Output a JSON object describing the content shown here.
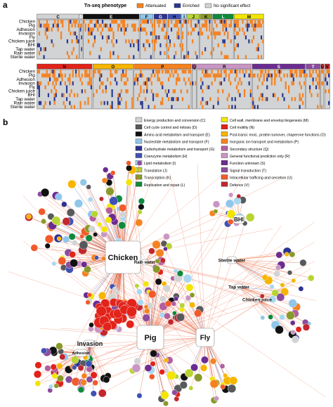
{
  "panel_a": {
    "label": "a",
    "legend": {
      "title": "Tn-seq phenotype",
      "items": [
        {
          "label": "Attenuated",
          "color": "#f58220"
        },
        {
          "label": "Enriched",
          "color": "#2b3990"
        },
        {
          "label": "No significant effect",
          "color": "#d1d3d4"
        }
      ]
    },
    "rows": [
      "Chicken",
      "Pig",
      "Adhesion",
      "Invasion",
      "Fly",
      "Chicken juice",
      "BHI",
      "Tap water",
      "Rain water",
      "Sterile water"
    ],
    "top_categories": [
      {
        "label": "C",
        "color": "#d1d3d4"
      },
      {
        "label": "D",
        "color": "#bcbec0"
      },
      {
        "label": "E",
        "color": "#111111"
      },
      {
        "label": "F",
        "color": "#8fc6ea"
      },
      {
        "label": "G",
        "color": "#2e3192"
      },
      {
        "label": "H",
        "color": "#3f51b5"
      },
      {
        "label": "I",
        "color": "#a6d8f0"
      },
      {
        "label": "J",
        "color": "#b8d433"
      },
      {
        "label": "K",
        "color": "#8a9a2a"
      },
      {
        "label": "L",
        "color": "#0d8a3c"
      },
      {
        "label": "M",
        "color": "#f2e500"
      }
    ],
    "bottom_categories": [
      {
        "label": "N",
        "color": "#e2231a"
      },
      {
        "label": "O",
        "color": "#f7b500"
      },
      {
        "label": "P",
        "color": "#f58220"
      },
      {
        "label": "Q",
        "color": "#b25fa0"
      },
      {
        "label": "R",
        "color": "#c996c4"
      },
      {
        "label": "S",
        "color": "#6b2c91"
      },
      {
        "label": "T",
        "color": "#8b4c9e"
      },
      {
        "label": "U",
        "color": "#c1272d"
      },
      {
        "label": "V",
        "color": "#d2232a"
      }
    ]
  },
  "panel_b": {
    "label": "b",
    "cog_legend": [
      {
        "label": "Energy production and conversion (C)",
        "color": "#d1d3d4"
      },
      {
        "label": "Cell cycle control and mitosis (D)",
        "color": "#58595b"
      },
      {
        "label": "Amino acid metabolism and transport (E)",
        "color": "#111111"
      },
      {
        "label": "Nucleotide metabolism and transport (F)",
        "color": "#8fc6ea"
      },
      {
        "label": "Carbohydrate metabolism and transport (G)",
        "color": "#2e3192"
      },
      {
        "label": "Coenzyme metabolism (H)",
        "color": "#3f51b5"
      },
      {
        "label": "Lipid metabolism (I)",
        "color": "#a6d8f0"
      },
      {
        "label": "Translation (J)",
        "color": "#b8d433"
      },
      {
        "label": "Transcription (K)",
        "color": "#8a9a2a"
      },
      {
        "label": "Replication and repair (L)",
        "color": "#0d8a3c"
      },
      {
        "label": "Cell wall, membrane and envelop biogenesis (M)",
        "color": "#f2e500"
      },
      {
        "label": "Cell motility (N)",
        "color": "#e2231a"
      },
      {
        "label": "Post-transl. mod., protein turnover, chaperone functions (O)",
        "color": "#f7b500"
      },
      {
        "label": "Inorganic ion transport and metabolism (P)",
        "color": "#f58220"
      },
      {
        "label": "Secondary structure (Q)",
        "color": "#b25fa0"
      },
      {
        "label": "General functional prediction only (R)",
        "color": "#c996c4"
      },
      {
        "label": "Function unknown (S)",
        "color": "#6b2c91"
      },
      {
        "label": "Signal transduction (T)",
        "color": "#8b4c9e"
      },
      {
        "label": "Intracellular trafficing and secretion (U)",
        "color": "#f15a29"
      },
      {
        "label": "Defence (V)",
        "color": "#c1272d"
      }
    ],
    "hubs": [
      {
        "id": "chicken",
        "label": "Chicken"
      },
      {
        "id": "pig",
        "label": "Pig"
      },
      {
        "id": "fly",
        "label": "Fly"
      },
      {
        "id": "adhesion",
        "label": "Adhesion"
      },
      {
        "id": "invasion",
        "label": "Invasion"
      },
      {
        "id": "bhi",
        "label": "BHI"
      },
      {
        "id": "rain",
        "label": "Rain water"
      },
      {
        "id": "sterile",
        "label": "Sterile water"
      },
      {
        "id": "tap",
        "label": "Tap water"
      },
      {
        "id": "juice",
        "label": "Chicken juice"
      }
    ]
  }
}
